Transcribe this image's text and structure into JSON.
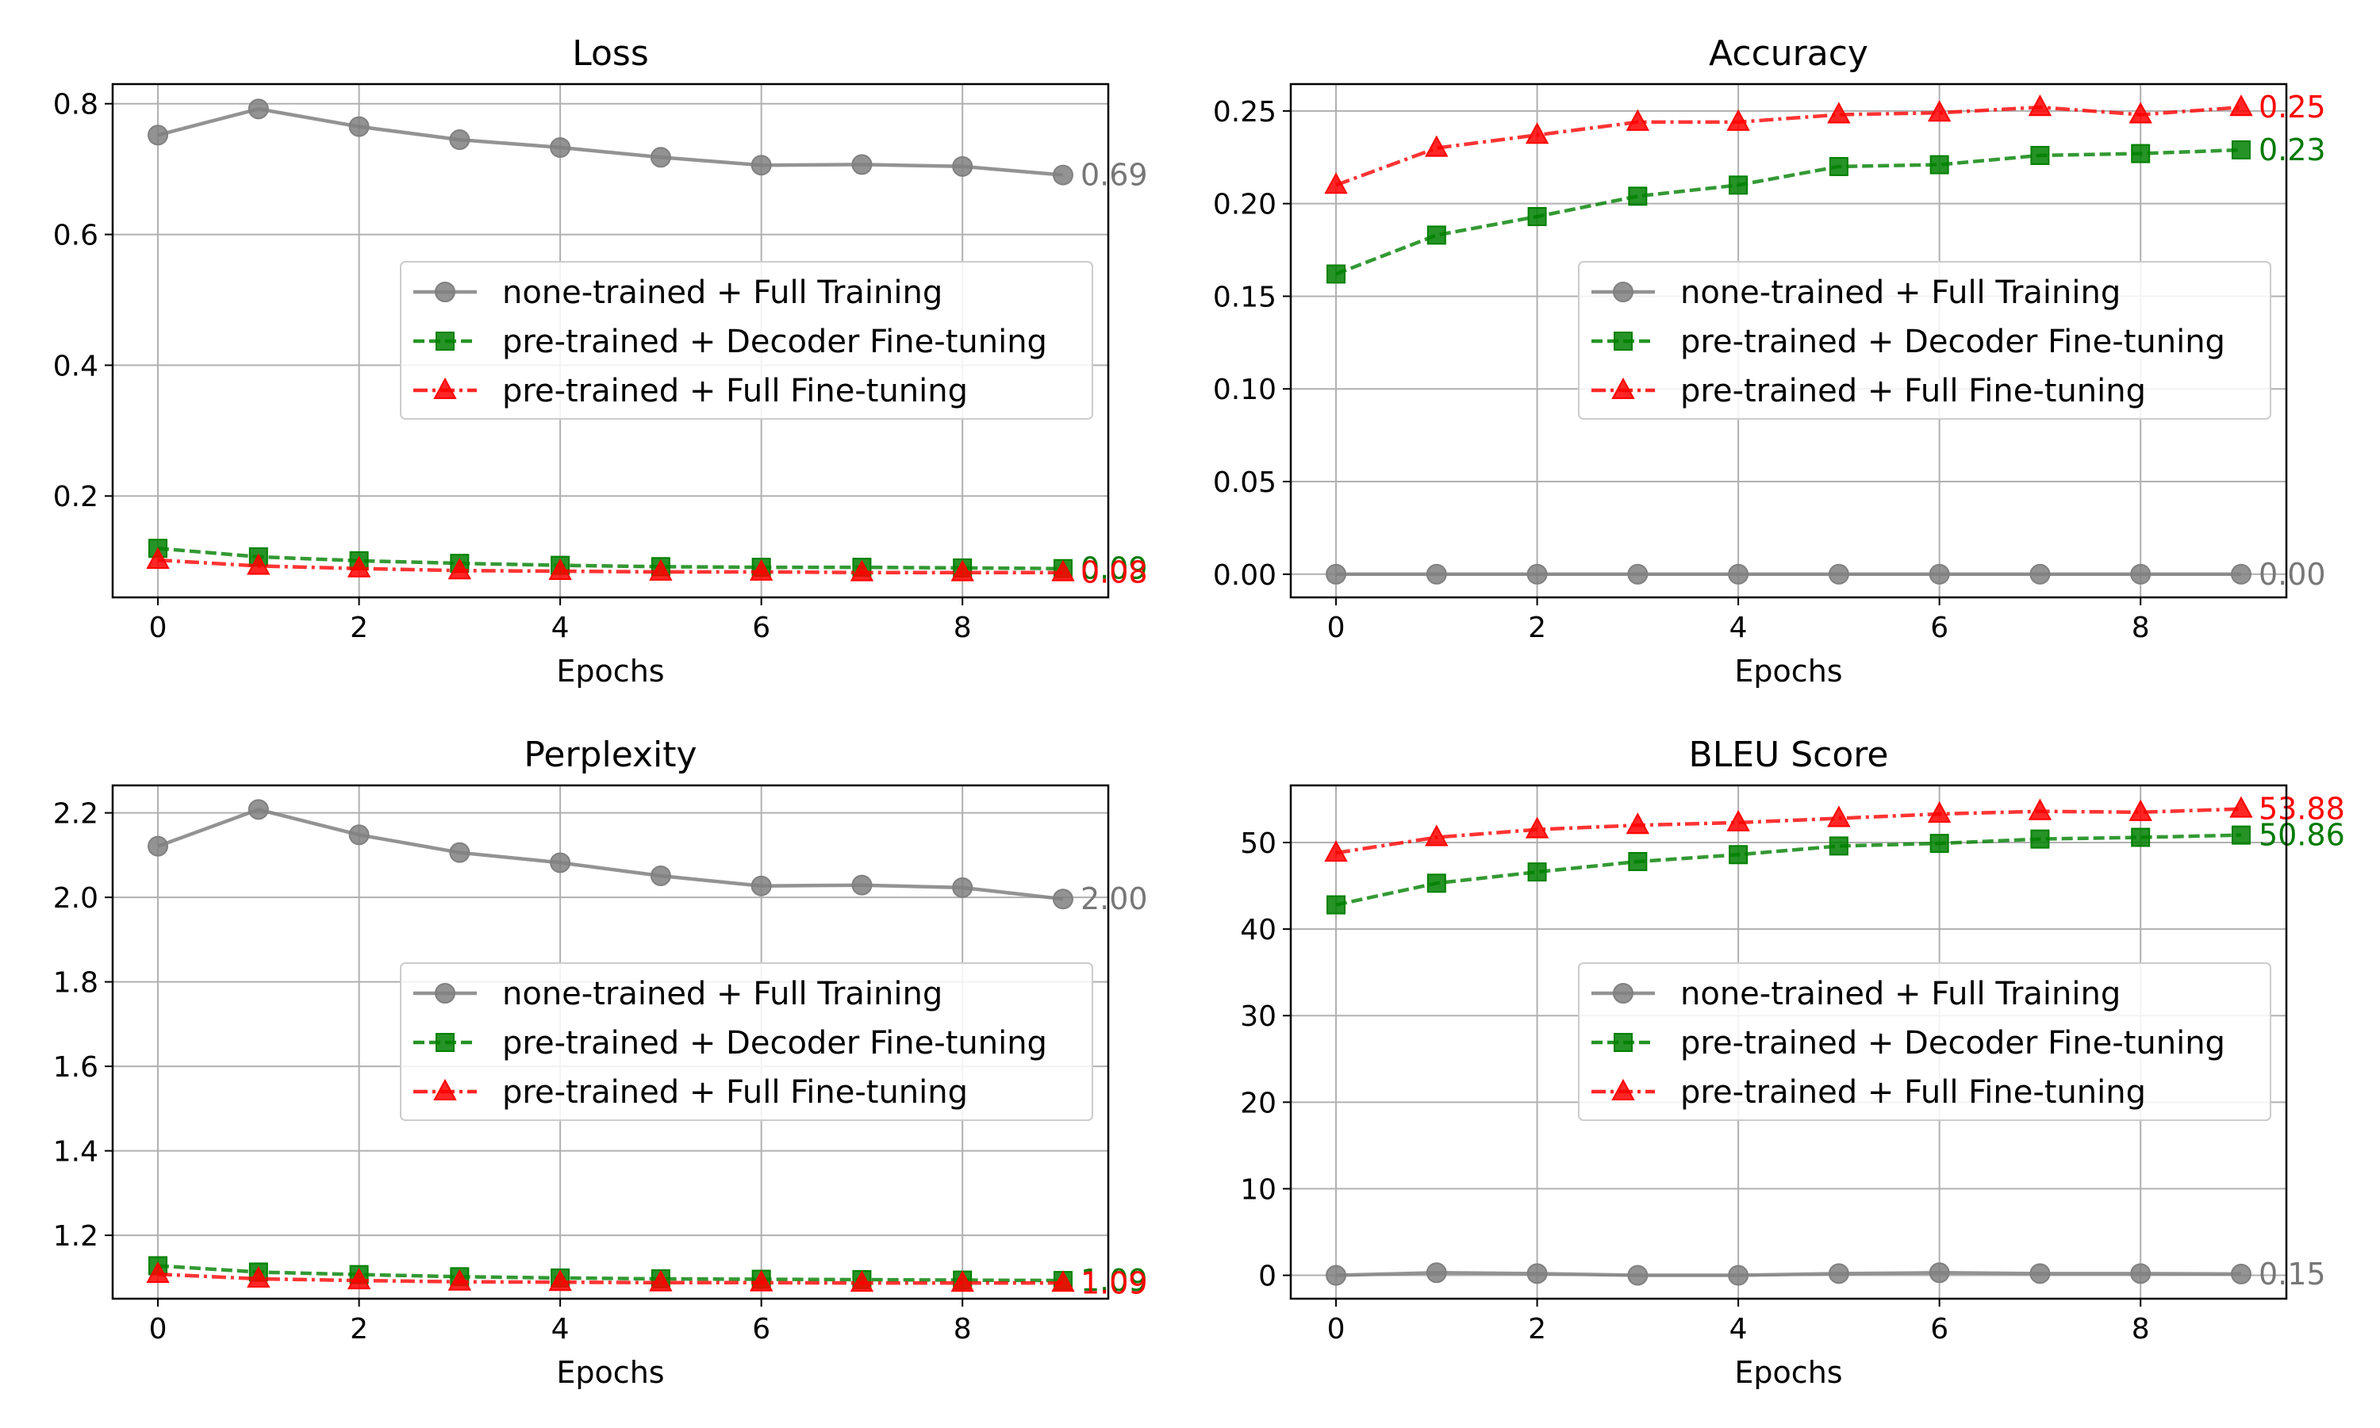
{
  "chart_data": [
    {
      "type": "line",
      "title": "Loss",
      "xlabel": "Epochs",
      "ylabel": "",
      "x": [
        0,
        1,
        2,
        3,
        4,
        5,
        6,
        7,
        8,
        9
      ],
      "xlim": [
        -0.45,
        9.45
      ],
      "ylim": [
        0.045,
        0.83
      ],
      "xticks": [
        0,
        2,
        4,
        6,
        8
      ],
      "yticks": [
        0.2,
        0.4,
        0.6,
        0.8
      ],
      "ytick_decimals": 1,
      "grid": true,
      "legend_position": "center-right",
      "series": [
        {
          "name": "none-trained + Full Training",
          "color": "#808080",
          "marker": "circle",
          "linestyle": "solid",
          "end_label": "0.69",
          "values": [
            0.752,
            0.792,
            0.765,
            0.745,
            0.733,
            0.718,
            0.706,
            0.707,
            0.704,
            0.691
          ]
        },
        {
          "name": "pre-trained + Decoder Fine-tuning",
          "color": "#008000",
          "marker": "square",
          "linestyle": "dashed",
          "end_label": "0.09",
          "values": [
            0.12,
            0.107,
            0.101,
            0.097,
            0.094,
            0.092,
            0.091,
            0.091,
            0.09,
            0.089
          ]
        },
        {
          "name": "pre-trained + Full Fine-tuning",
          "color": "#ff0000",
          "marker": "triangle",
          "linestyle": "dashdot",
          "end_label": "0.08",
          "values": [
            0.102,
            0.093,
            0.089,
            0.086,
            0.085,
            0.084,
            0.084,
            0.083,
            0.083,
            0.083
          ]
        }
      ]
    },
    {
      "type": "line",
      "title": "Accuracy",
      "xlabel": "Epochs",
      "ylabel": "",
      "x": [
        0,
        1,
        2,
        3,
        4,
        5,
        6,
        7,
        8,
        9
      ],
      "xlim": [
        -0.45,
        9.45
      ],
      "ylim": [
        -0.0125,
        0.2645
      ],
      "xticks": [
        0,
        2,
        4,
        6,
        8
      ],
      "yticks": [
        0.0,
        0.05,
        0.1,
        0.15,
        0.2,
        0.25
      ],
      "ytick_decimals": 2,
      "grid": true,
      "legend_position": "center-right",
      "series": [
        {
          "name": "none-trained + Full Training",
          "color": "#808080",
          "marker": "circle",
          "linestyle": "solid",
          "end_label": "0.00",
          "values": [
            0,
            0,
            0,
            0,
            0,
            0,
            0,
            0,
            0,
            0
          ]
        },
        {
          "name": "pre-trained + Decoder Fine-tuning",
          "color": "#008000",
          "marker": "square",
          "linestyle": "dashed",
          "end_label": "0.23",
          "values": [
            0.162,
            0.183,
            0.193,
            0.204,
            0.21,
            0.22,
            0.221,
            0.226,
            0.227,
            0.229
          ]
        },
        {
          "name": "pre-trained + Full Fine-tuning",
          "color": "#ff0000",
          "marker": "triangle",
          "linestyle": "dashdot",
          "end_label": "0.25",
          "values": [
            0.21,
            0.23,
            0.237,
            0.244,
            0.244,
            0.248,
            0.249,
            0.252,
            0.248,
            0.252
          ]
        }
      ]
    },
    {
      "type": "line",
      "title": "Perplexity",
      "xlabel": "Epochs",
      "ylabel": "",
      "x": [
        0,
        1,
        2,
        3,
        4,
        5,
        6,
        7,
        8,
        9
      ],
      "xlim": [
        -0.45,
        9.45
      ],
      "ylim": [
        1.05,
        2.265
      ],
      "xticks": [
        0,
        2,
        4,
        6,
        8
      ],
      "yticks": [
        1.2,
        1.4,
        1.6,
        1.8,
        2.0,
        2.2
      ],
      "ytick_decimals": 1,
      "grid": true,
      "legend_position": "center-right",
      "series": [
        {
          "name": "none-trained + Full Training",
          "color": "#808080",
          "marker": "circle",
          "linestyle": "solid",
          "end_label": "2.00",
          "values": [
            2.121,
            2.208,
            2.148,
            2.106,
            2.082,
            2.051,
            2.027,
            2.029,
            2.023,
            1.996
          ]
        },
        {
          "name": "pre-trained + Decoder Fine-tuning",
          "color": "#008000",
          "marker": "square",
          "linestyle": "dashed",
          "end_label": "1.09",
          "values": [
            1.128,
            1.113,
            1.107,
            1.102,
            1.099,
            1.097,
            1.096,
            1.095,
            1.094,
            1.093
          ]
        },
        {
          "name": "pre-trained + Full Fine-tuning",
          "color": "#ff0000",
          "marker": "triangle",
          "linestyle": "dashdot",
          "end_label": "1.09",
          "values": [
            1.108,
            1.097,
            1.093,
            1.09,
            1.089,
            1.088,
            1.088,
            1.087,
            1.087,
            1.087
          ]
        }
      ]
    },
    {
      "type": "line",
      "title": "BLEU Score",
      "xlabel": "Epochs",
      "ylabel": "",
      "x": [
        0,
        1,
        2,
        3,
        4,
        5,
        6,
        7,
        8,
        9
      ],
      "xlim": [
        -0.45,
        9.45
      ],
      "ylim": [
        -2.7,
        56.6
      ],
      "xticks": [
        0,
        2,
        4,
        6,
        8
      ],
      "yticks": [
        0,
        10,
        20,
        30,
        40,
        50
      ],
      "ytick_decimals": 0,
      "grid": true,
      "legend_position": "center-right",
      "series": [
        {
          "name": "none-trained + Full Training",
          "color": "#808080",
          "marker": "circle",
          "linestyle": "solid",
          "end_label": "0.15",
          "values": [
            0.0,
            0.3,
            0.2,
            0.0,
            0.0,
            0.2,
            0.3,
            0.2,
            0.2,
            0.15
          ]
        },
        {
          "name": "pre-trained + Decoder Fine-tuning",
          "color": "#008000",
          "marker": "square",
          "linestyle": "dashed",
          "end_label": "50.86",
          "values": [
            42.8,
            45.3,
            46.6,
            47.8,
            48.6,
            49.6,
            49.9,
            50.4,
            50.6,
            50.86
          ]
        },
        {
          "name": "pre-trained + Full Fine-tuning",
          "color": "#ff0000",
          "marker": "triangle",
          "linestyle": "dashdot",
          "end_label": "53.88",
          "values": [
            48.8,
            50.6,
            51.5,
            52.0,
            52.3,
            52.8,
            53.3,
            53.6,
            53.5,
            53.88
          ]
        }
      ]
    }
  ]
}
